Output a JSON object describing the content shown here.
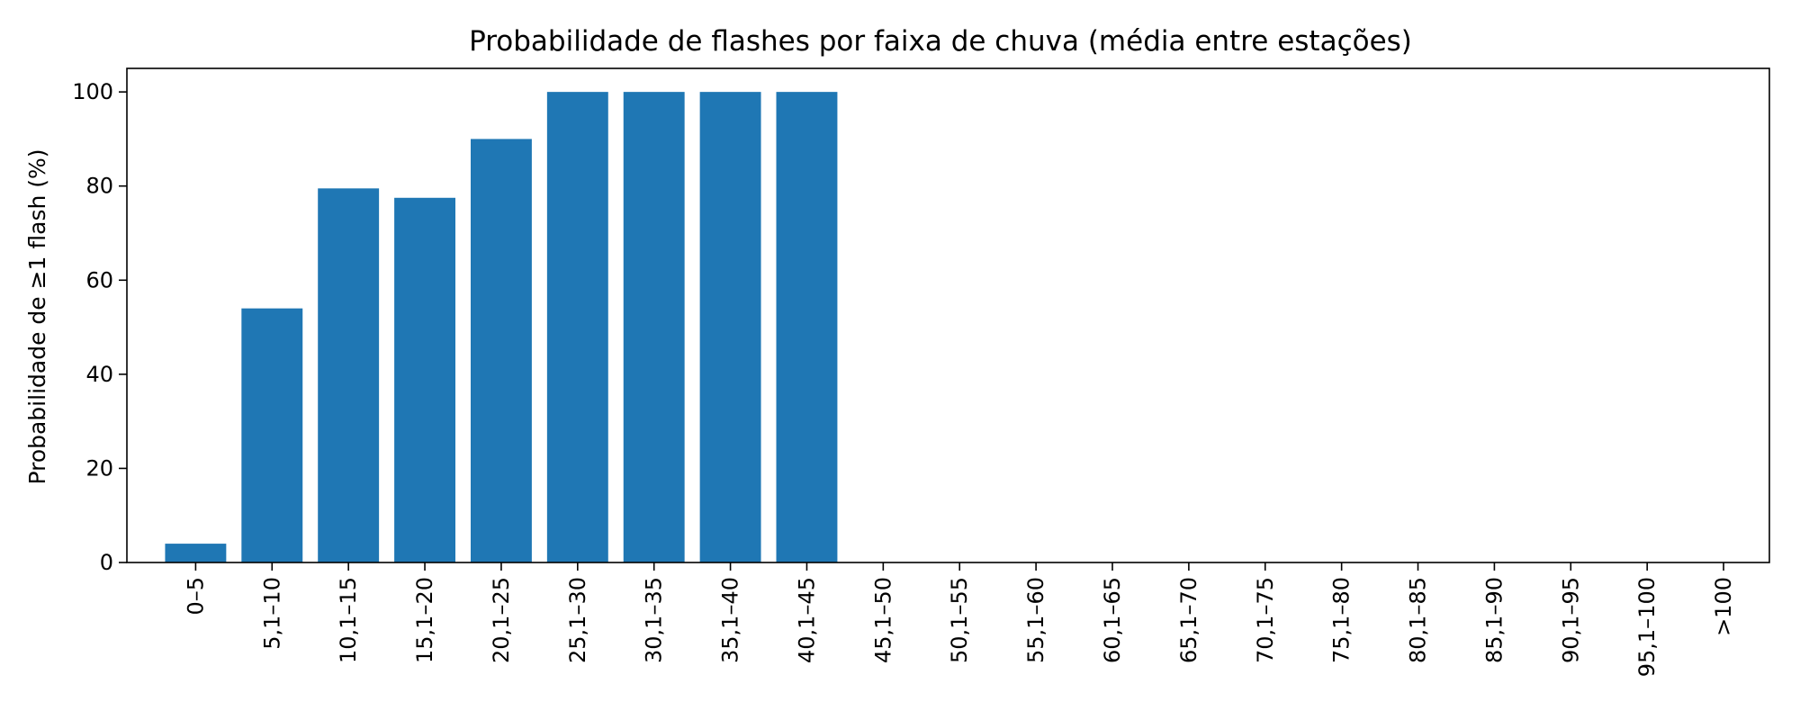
{
  "chart_data": {
    "type": "bar",
    "title": "Probabilidade de flashes por faixa de chuva (média entre estações)",
    "xlabel": "",
    "ylabel": "Probabilidade de ≥1 flash (%)",
    "ylim": [
      0,
      105
    ],
    "yticks": [
      0,
      20,
      40,
      60,
      80,
      100
    ],
    "grid": false,
    "legend": "none",
    "bar_color": "#1f77b4",
    "categories": [
      "0–5",
      "5,1–10",
      "10,1–15",
      "15,1–20",
      "20,1–25",
      "25,1–30",
      "30,1–35",
      "35,1–40",
      "40,1–45",
      "45,1–50",
      "50,1–55",
      "55,1–60",
      "60,1–65",
      "65,1–70",
      "70,1–75",
      "75,1–80",
      "80,1–85",
      "85,1–90",
      "90,1–95",
      "95,1–100",
      ">100"
    ],
    "values": [
      4,
      54,
      79.5,
      77.5,
      90,
      100,
      100,
      100,
      100,
      null,
      null,
      null,
      null,
      null,
      null,
      null,
      null,
      null,
      null,
      null,
      null
    ]
  }
}
